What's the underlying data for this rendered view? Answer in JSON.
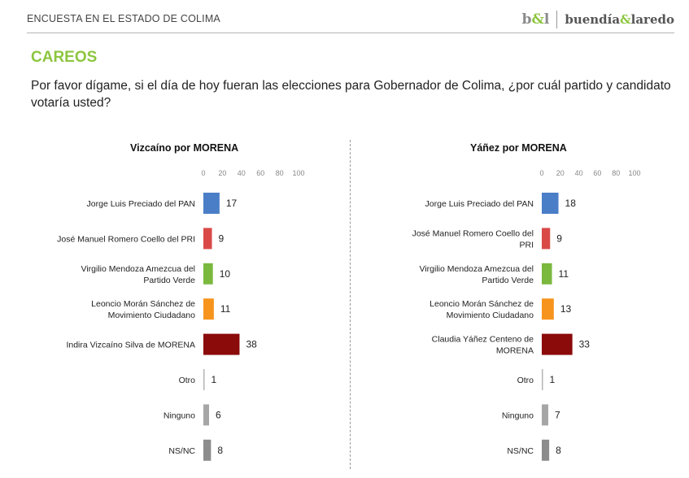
{
  "header": {
    "survey_title": "ENCUESTA EN EL ESTADO DE COLIMA",
    "brand_mark": "b&l",
    "brand_name": "buendía&laredo"
  },
  "section_title": "CAREOS",
  "question": "Por favor dígame, si el día de hoy fueran las elecciones para Gobernador de Colima, ¿por cuál partido y candidato votaría usted?",
  "colors": {
    "pan": "#4a7ec7",
    "pri": "#d94a47",
    "verde": "#7ab83e",
    "mc": "#f7941d",
    "morena": "#8b0a0a",
    "otro": "#b5b5b5",
    "ninguno": "#a6a6a6",
    "nsnc": "#8c8c8c",
    "accent": "#8dc63f"
  },
  "chart_data": [
    {
      "type": "bar",
      "orientation": "horizontal",
      "title": "Vizcaíno por MORENA",
      "xlim": [
        0,
        100
      ],
      "xticks": [
        0,
        20,
        40,
        60,
        80,
        100
      ],
      "categories": [
        [
          "Jorge Luis Preciado del PAN"
        ],
        [
          "José Manuel Romero Coello del PRI"
        ],
        [
          "Virgilio Mendoza Amezcua del",
          "Partido Verde"
        ],
        [
          "Leoncio Morán Sánchez de",
          "Movimiento Ciudadano"
        ],
        [
          "Indira Vizcaíno Silva de MORENA"
        ],
        [
          "Otro"
        ],
        [
          "Ninguno"
        ],
        [
          "NS/NC"
        ]
      ],
      "values": [
        17,
        9,
        10,
        11,
        38,
        1,
        6,
        8
      ],
      "bar_colors": [
        "#4a7ec7",
        "#d94a47",
        "#7ab83e",
        "#f7941d",
        "#8b0a0a",
        "#b5b5b5",
        "#a6a6a6",
        "#8c8c8c"
      ]
    },
    {
      "type": "bar",
      "orientation": "horizontal",
      "title": "Yáñez por MORENA",
      "xlim": [
        0,
        100
      ],
      "xticks": [
        0,
        20,
        40,
        60,
        80,
        100
      ],
      "categories": [
        [
          "Jorge Luis Preciado del PAN"
        ],
        [
          "José Manuel Romero Coello del",
          "PRI"
        ],
        [
          "Virgilio Mendoza Amezcua del",
          "Partido Verde"
        ],
        [
          "Leoncio Morán Sánchez de",
          "Movimiento Ciudadano"
        ],
        [
          "Claudia Yáñez Centeno de",
          "MORENA"
        ],
        [
          "Otro"
        ],
        [
          "Ninguno"
        ],
        [
          "NS/NC"
        ]
      ],
      "values": [
        18,
        9,
        11,
        13,
        33,
        1,
        7,
        8
      ],
      "bar_colors": [
        "#4a7ec7",
        "#d94a47",
        "#7ab83e",
        "#f7941d",
        "#8b0a0a",
        "#b5b5b5",
        "#a6a6a6",
        "#8c8c8c"
      ]
    }
  ]
}
